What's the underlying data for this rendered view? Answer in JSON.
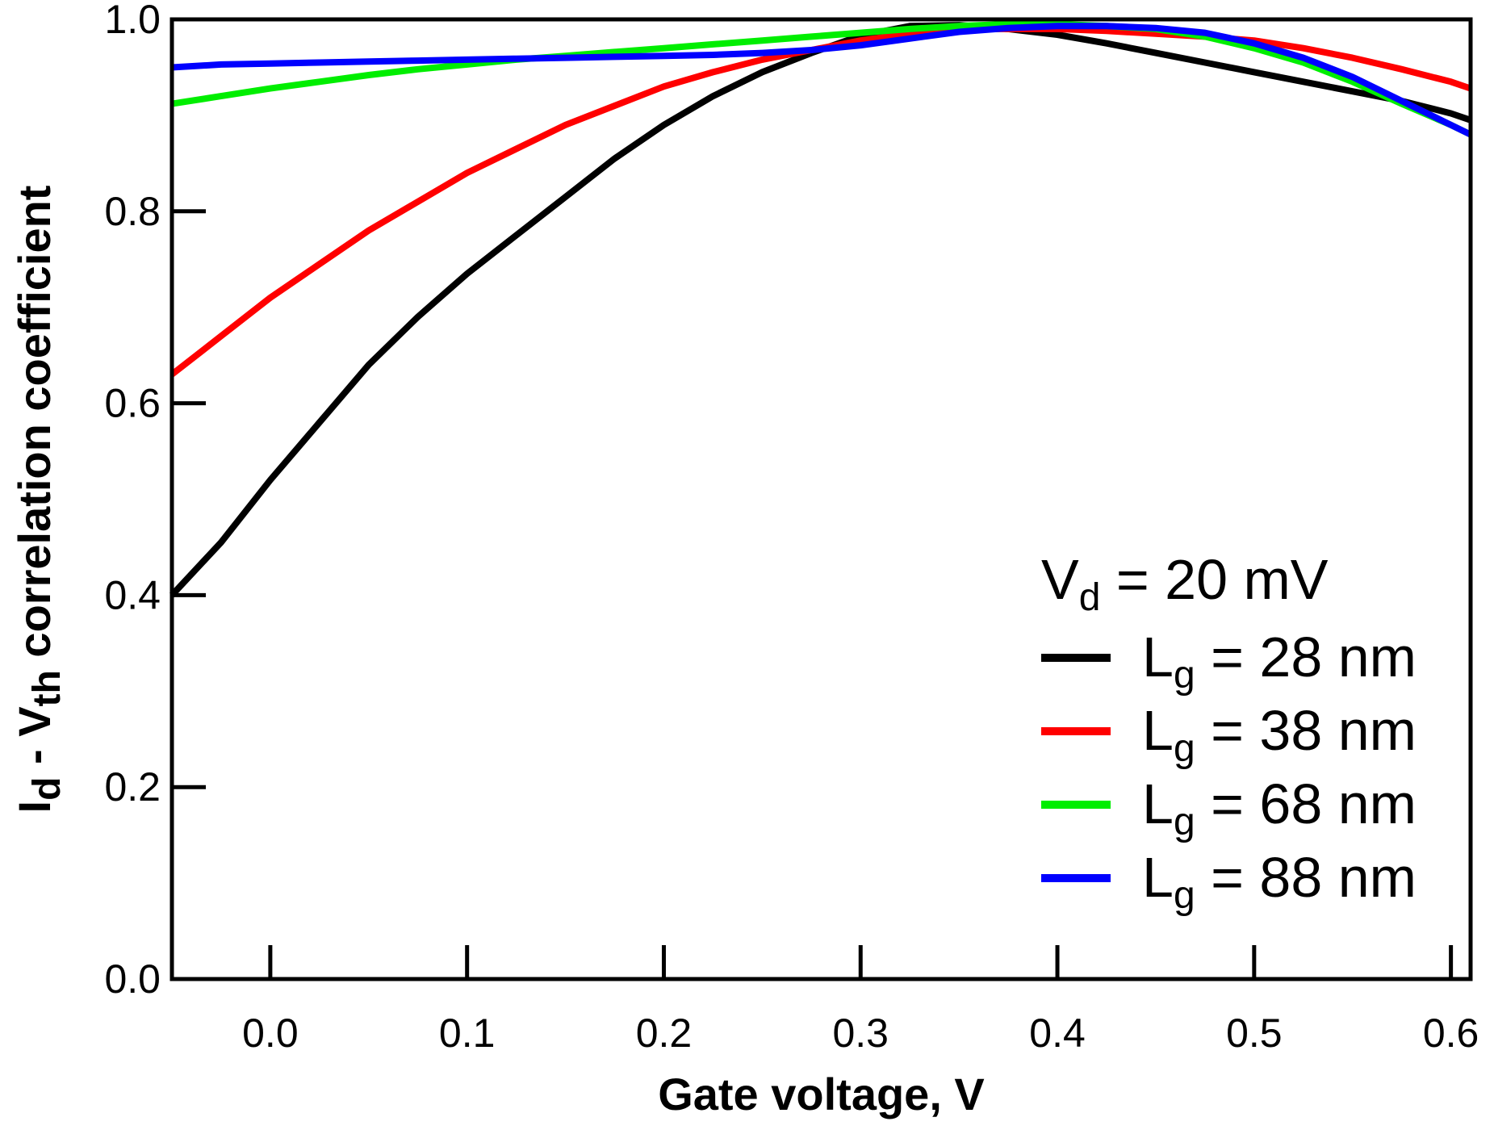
{
  "chart_data": {
    "type": "line",
    "xlabel": "Gate voltage, V",
    "ylabel": {
      "main": "I",
      "sub1": "d",
      "mid": " - V",
      "sub2": "th",
      "rest": " correlation coefficient"
    },
    "xlim": [
      -0.05,
      0.61
    ],
    "ylim": [
      0.0,
      1.0
    ],
    "xticks": [
      0.0,
      0.1,
      0.2,
      0.3,
      0.4,
      0.5,
      0.6
    ],
    "xtick_labels": [
      "0.0",
      "0.1",
      "0.2",
      "0.3",
      "0.4",
      "0.5",
      "0.6"
    ],
    "yticks": [
      0.0,
      0.2,
      0.4,
      0.6,
      0.8,
      1.0
    ],
    "ytick_labels": [
      "0.0",
      "0.2",
      "0.4",
      "0.6",
      "0.8",
      "1.0"
    ],
    "grid": false,
    "legend_position": "bottom-right",
    "legend_title": {
      "main": "V",
      "sub": "d",
      "rest": " = 20 mV"
    },
    "x": [
      -0.05,
      -0.025,
      0.0,
      0.025,
      0.05,
      0.075,
      0.1,
      0.125,
      0.15,
      0.175,
      0.2,
      0.225,
      0.25,
      0.275,
      0.3,
      0.325,
      0.35,
      0.375,
      0.4,
      0.425,
      0.45,
      0.475,
      0.5,
      0.525,
      0.55,
      0.575,
      0.6,
      0.61
    ],
    "series": [
      {
        "label_main": "L",
        "label_sub": "g",
        "label_rest": " = 28 nm",
        "color": "#000000",
        "values": [
          0.4,
          0.455,
          0.52,
          0.58,
          0.64,
          0.69,
          0.735,
          0.775,
          0.815,
          0.855,
          0.89,
          0.92,
          0.945,
          0.965,
          0.983,
          0.993,
          0.994,
          0.99,
          0.984,
          0.975,
          0.965,
          0.955,
          0.945,
          0.935,
          0.925,
          0.915,
          0.902,
          0.895
        ]
      },
      {
        "label_main": "L",
        "label_sub": "g",
        "label_rest": " = 38 nm",
        "color": "#ff0000",
        "values": [
          0.63,
          0.67,
          0.71,
          0.745,
          0.78,
          0.81,
          0.84,
          0.865,
          0.89,
          0.91,
          0.93,
          0.945,
          0.958,
          0.968,
          0.978,
          0.985,
          0.99,
          0.99,
          0.99,
          0.988,
          0.985,
          0.982,
          0.978,
          0.97,
          0.96,
          0.948,
          0.935,
          0.928
        ]
      },
      {
        "label_main": "L",
        "label_sub": "g",
        "label_rest": " = 68 nm",
        "color": "#00ee00",
        "values": [
          0.912,
          0.92,
          0.928,
          0.935,
          0.942,
          0.948,
          0.953,
          0.958,
          0.962,
          0.966,
          0.97,
          0.974,
          0.978,
          0.982,
          0.986,
          0.99,
          0.993,
          0.995,
          0.995,
          0.993,
          0.99,
          0.982,
          0.97,
          0.955,
          0.935,
          0.912,
          0.89,
          0.88
        ]
      },
      {
        "label_main": "L",
        "label_sub": "g",
        "label_rest": " = 88 nm",
        "color": "#0000ff",
        "values": [
          0.95,
          0.953,
          0.954,
          0.955,
          0.956,
          0.957,
          0.958,
          0.959,
          0.96,
          0.961,
          0.962,
          0.963,
          0.965,
          0.968,
          0.973,
          0.98,
          0.987,
          0.991,
          0.993,
          0.993,
          0.991,
          0.986,
          0.975,
          0.96,
          0.94,
          0.915,
          0.89,
          0.88
        ]
      }
    ]
  }
}
